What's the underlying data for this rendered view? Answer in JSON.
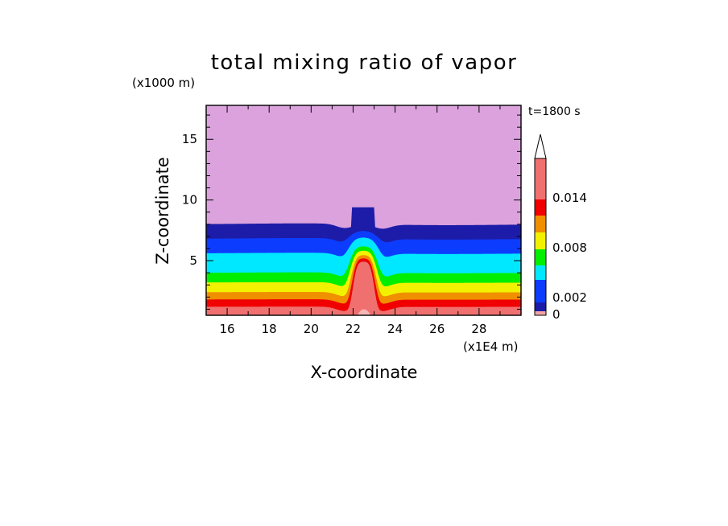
{
  "chart_data": {
    "type": "heatmap",
    "title": "total mixing ratio of vapor",
    "time_label": "t=1800 s",
    "xlabel": "X-coordinate",
    "ylabel": "Z-coordinate",
    "x_unit": "(x1E4 m)",
    "y_unit": "(x1000 m)",
    "xlim": [
      15,
      30
    ],
    "ylim": [
      0.5,
      17.8
    ],
    "x_ticks": [
      16,
      18,
      20,
      22,
      24,
      26,
      28
    ],
    "y_ticks": [
      5,
      10,
      15
    ],
    "grid": false,
    "colorbar": {
      "labels": [
        "0",
        "0.002",
        "0.008",
        "0.014"
      ],
      "levels": [
        0,
        0.001,
        0.002,
        0.004,
        0.006,
        0.008,
        0.01,
        0.012,
        0.014,
        0.016
      ],
      "colors": [
        "#f4a3a3",
        "#1c1ca8",
        "#0c3dff",
        "#00e8ff",
        "#00ee00",
        "#f2f200",
        "#f09000",
        "#f00000",
        "#f07070",
        "#f7b7b7"
      ],
      "extend_max": true
    },
    "band_base_heights_km": {
      "levels": [
        0.014,
        0.012,
        0.01,
        0.008,
        0.006,
        0.004,
        0.002,
        0.001
      ],
      "heights": [
        0.6,
        1.2,
        1.8,
        2.4,
        3.2,
        4.0,
        5.6,
        6.8
      ]
    },
    "layer_tops_km": [
      1.2,
      1.8,
      2.4,
      3.2,
      4.0,
      5.6,
      6.8,
      8.0
    ],
    "upper_region_color": "#dba2dd",
    "updraft_plume": {
      "x_range": [
        21.9,
        23.1
      ],
      "top_km": 9.4
    }
  }
}
